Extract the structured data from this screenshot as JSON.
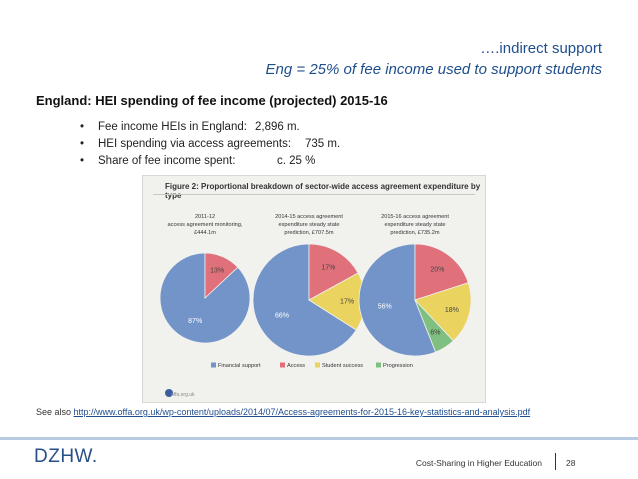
{
  "header": {
    "line1": "….indirect support",
    "line2": "Eng = 25% of fee income used to support students"
  },
  "subtitle": "England: HEI spending of fee income (projected) 2015-16",
  "bullets": [
    {
      "label": "Fee income HEIs in England:",
      "value": "2,896 m."
    },
    {
      "label": "HEI spending via access agreements:",
      "value": "735 m."
    },
    {
      "label": "Share of fee income spent:",
      "value": "c. 25 %"
    }
  ],
  "chart_data": {
    "type": "pie",
    "title": "Figure 2: Proportional breakdown of sector-wide access agreement expenditure by type",
    "legend_position": "bottom",
    "categories": [
      "Financial support",
      "Access",
      "Student success",
      "Progression"
    ],
    "colors": {
      "Financial support": "#7394c8",
      "Access": "#e0707a",
      "Student success": "#ead35f",
      "Progression": "#7fbf7f"
    },
    "pies": [
      {
        "title": "2011-12 access agreement monitoring, £444.1m",
        "title_lines": [
          "2011-12",
          "access agreement monitoring,",
          "£444.1m"
        ],
        "values": [
          87,
          13,
          0,
          0
        ],
        "labels": [
          "87%",
          "13%",
          "",
          ""
        ]
      },
      {
        "title": "2014-15 access agreement expenditure steady state prediction, £707.5m",
        "title_lines": [
          "2014-15 access agreement",
          "expenditure steady state",
          "prediction, £707.5m"
        ],
        "values": [
          66,
          17,
          17,
          0
        ],
        "labels": [
          "66%",
          "17%",
          "17%",
          ""
        ]
      },
      {
        "title": "2015-16 access agreement expenditure steady state prediction, £735.2m",
        "title_lines": [
          "2015-16 access agreement",
          "expenditure steady state",
          "prediction, £735.2m"
        ],
        "values": [
          56,
          20,
          18,
          6
        ],
        "labels": [
          "56%",
          "20%",
          "18%",
          "6%"
        ]
      }
    ],
    "source": "offa.org.uk"
  },
  "see_also": {
    "prefix": "See also ",
    "link": "http://www.offa.org.uk/wp-content/uploads/2014/07/Access-agreements-for-2015-16-key-statistics-and-analysis.pdf"
  },
  "footer": {
    "logo": "DZHW.",
    "text": "Cost-Sharing in Higher Education",
    "page": "28"
  }
}
